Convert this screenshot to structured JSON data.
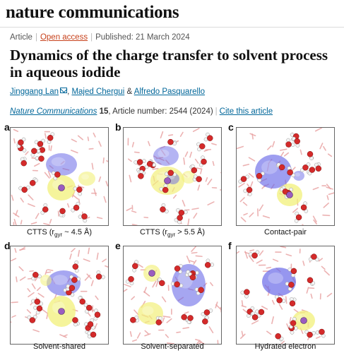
{
  "journal": "nature communications",
  "meta": {
    "type": "Article",
    "access": "Open access",
    "published": "Published: 21 March 2024"
  },
  "title": "Dynamics of the charge transfer to solvent process in aqueous iodide",
  "authors": [
    "Jinggang Lan",
    "Majed Chergui",
    "Alfredo Pasquarello"
  ],
  "authors_joiners": [
    ", ",
    " & "
  ],
  "citation": {
    "journal": "Nature Communications",
    "volume": "15",
    "rest": ", Article number: 2544 (2024)",
    "cite_link": "Cite this article"
  },
  "figure": {
    "panels": [
      {
        "letter": "a",
        "caption_pre": "CTTS (r",
        "caption_sub": "gyr",
        "caption_post": " ~ 4.5 Å)"
      },
      {
        "letter": "b",
        "caption_pre": "CTTS (r",
        "caption_sub": "gyr",
        "caption_post": " > 5.5 Å)"
      },
      {
        "letter": "c",
        "caption_pre": "Contact-pair",
        "caption_sub": "",
        "caption_post": ""
      },
      {
        "letter": "d",
        "caption_pre": "Solvent-shared",
        "caption_sub": "",
        "caption_post": ""
      },
      {
        "letter": "e",
        "caption_pre": "Solvent-separated",
        "caption_sub": "",
        "caption_post": ""
      },
      {
        "letter": "f",
        "caption_pre": "Hydrated electron",
        "caption_sub": "",
        "caption_post": ""
      }
    ],
    "colors": {
      "electron_density": "#6a6ae8",
      "iodine_density": "#f2f07a",
      "oxygen": "#d42a2a",
      "hydrogen": "#f4f4f4",
      "iodine_atom": "#9a5cc0",
      "background_water": "#e8a0a0"
    }
  }
}
